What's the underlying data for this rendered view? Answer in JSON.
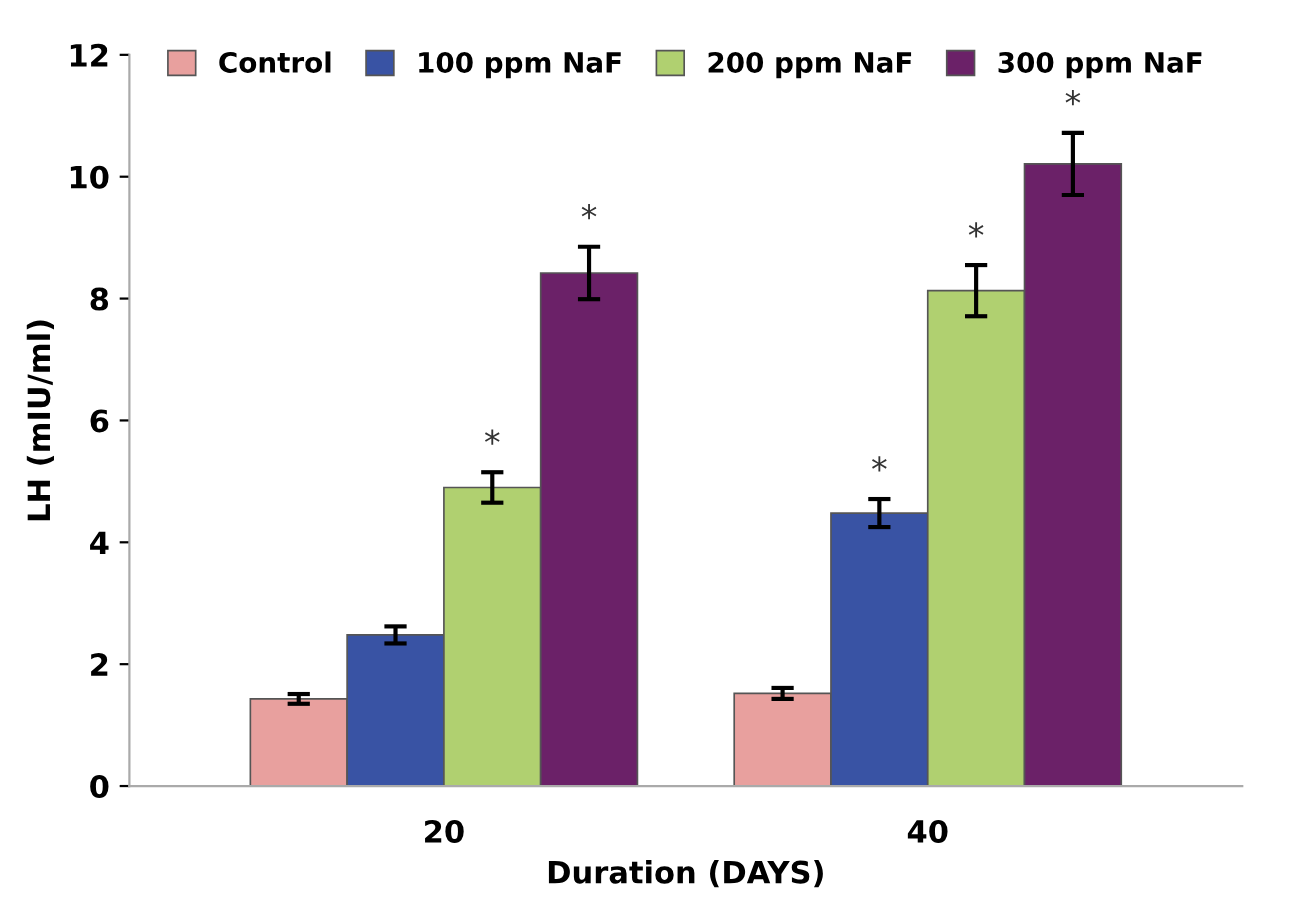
{
  "chart_data": {
    "type": "bar",
    "xlabel": "Duration (DAYS)",
    "ylabel": "LH (mIU/ml)",
    "categories": [
      "20",
      "40"
    ],
    "series": [
      {
        "name": "Control",
        "color": "#e8a09e",
        "values": [
          1.43,
          1.52
        ],
        "errors": [
          0.08,
          0.09
        ]
      },
      {
        "name": "100 ppm NaF",
        "color": "#3953a4",
        "values": [
          2.48,
          4.48
        ],
        "errors": [
          0.14,
          0.23
        ],
        "value_labels": [
          null,
          "*"
        ]
      },
      {
        "name": "200 ppm NaF",
        "color": "#b0d070",
        "values": [
          4.9,
          8.13
        ],
        "errors": [
          0.25,
          0.42
        ],
        "value_labels": [
          "*",
          "*"
        ]
      },
      {
        "name": "300 ppm NaF",
        "color": "#6b2168",
        "values": [
          8.42,
          10.21
        ],
        "errors": [
          0.43,
          0.51
        ],
        "value_labels": [
          "*",
          "*"
        ]
      }
    ],
    "ylim": [
      0,
      12
    ],
    "yticks": [
      0,
      2,
      4,
      6,
      8,
      10,
      12
    ],
    "grid": false,
    "legend": "top"
  }
}
